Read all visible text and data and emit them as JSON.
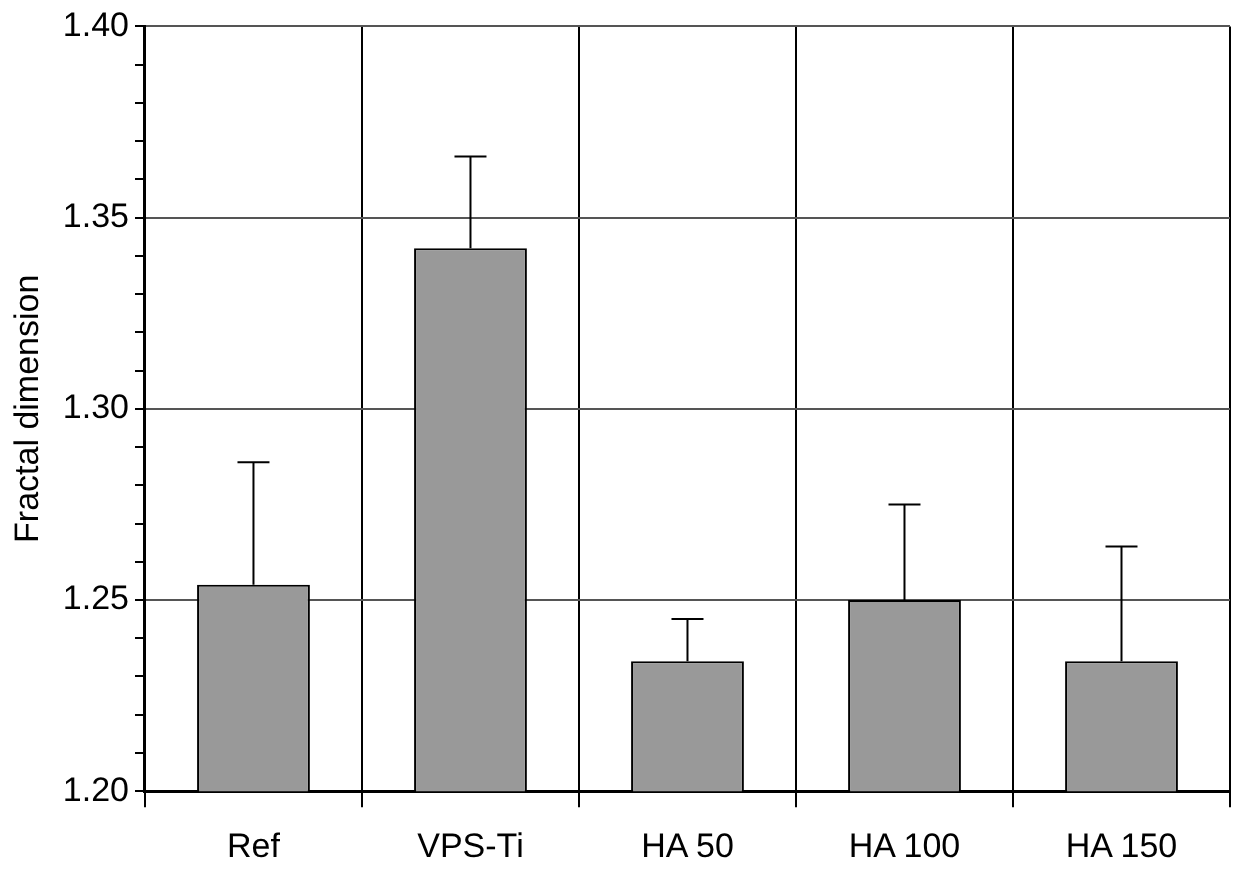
{
  "chart_data": {
    "type": "bar",
    "ylabel": "Fractal dimension",
    "categories": [
      "Ref",
      "VPS-Ti",
      "HA 50",
      "HA 100",
      "HA 150"
    ],
    "values": [
      1.254,
      1.342,
      1.234,
      1.25,
      1.234
    ],
    "errors": [
      [
        1.254,
        1.286
      ],
      [
        1.342,
        1.366
      ],
      [
        1.234,
        1.245
      ],
      [
        1.25,
        1.275
      ],
      [
        1.234,
        1.264
      ]
    ],
    "color": "#999999",
    "ylim": [
      1.2,
      1.4
    ],
    "yticks": [
      {
        "value": 1.2,
        "label": "1.20"
      },
      {
        "value": 1.21,
        "label": null
      },
      {
        "value": 1.22,
        "label": null
      },
      {
        "value": 1.23,
        "label": null
      },
      {
        "value": 1.24,
        "label": null
      },
      1.25,
      {
        "value": 1.26,
        "label": null
      },
      {
        "value": 1.27,
        "label": null
      },
      {
        "value": 1.28,
        "label": null
      },
      {
        "value": 1.29,
        "label": null
      },
      {
        "value": 1.3,
        "label": "1.30"
      },
      {
        "value": 1.31,
        "label": null
      },
      {
        "value": 1.32,
        "label": null
      },
      {
        "value": 1.33,
        "label": null
      },
      {
        "value": 1.34,
        "label": null
      },
      1.35,
      {
        "value": 1.36,
        "label": null
      },
      {
        "value": 1.37,
        "label": null
      },
      {
        "value": 1.38,
        "label": null
      },
      {
        "value": 1.39,
        "label": null
      },
      {
        "value": 1.4,
        "label": "1.40"
      }
    ],
    "grid": true
  }
}
